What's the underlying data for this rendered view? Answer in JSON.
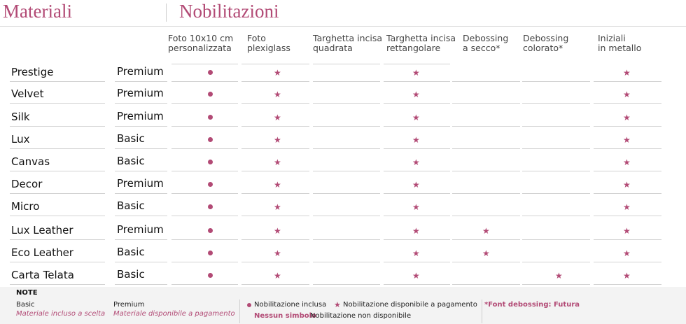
{
  "header": {
    "left_title": "Materiali",
    "right_title": "Nobilitazioni"
  },
  "columns": [
    {
      "line1": "Foto 10x10 cm",
      "line2": "personalizzata"
    },
    {
      "line1": "Foto",
      "line2": "plexiglass"
    },
    {
      "line1": "Targhetta incisa",
      "line2": "quadrata"
    },
    {
      "line1": "Targhetta incisa",
      "line2": "rettangolare"
    },
    {
      "line1": "Debossing",
      "line2": "a secco*"
    },
    {
      "line1": "Debossing",
      "line2": "colorato*"
    },
    {
      "line1": "Iniziali",
      "line2": "in metallo"
    }
  ],
  "rows": [
    {
      "name": "Prestige",
      "type": "Premium",
      "marks": [
        "dot",
        "star",
        "",
        "star",
        "",
        "",
        "star"
      ]
    },
    {
      "name": "Velvet",
      "type": "Premium",
      "marks": [
        "dot",
        "star",
        "",
        "star",
        "",
        "",
        "star"
      ]
    },
    {
      "name": "Silk",
      "type": "Premium",
      "marks": [
        "dot",
        "star",
        "",
        "star",
        "",
        "",
        "star"
      ]
    },
    {
      "name": "Lux",
      "type": "Basic",
      "marks": [
        "dot",
        "star",
        "",
        "star",
        "",
        "",
        "star"
      ]
    },
    {
      "name": "Canvas",
      "type": "Basic",
      "marks": [
        "dot",
        "star",
        "",
        "star",
        "",
        "",
        "star"
      ]
    },
    {
      "name": "Decor",
      "type": "Premium",
      "marks": [
        "dot",
        "star",
        "",
        "star",
        "",
        "",
        "star"
      ]
    },
    {
      "name": "Micro",
      "type": "Basic",
      "marks": [
        "dot",
        "star",
        "",
        "star",
        "",
        "",
        "star"
      ]
    },
    {
      "name": "Lux Leather",
      "type": "Premium",
      "marks": [
        "dot",
        "star",
        "",
        "star",
        "star",
        "",
        "star"
      ]
    },
    {
      "name": "Eco Leather",
      "type": "Basic",
      "marks": [
        "dot",
        "star",
        "",
        "star",
        "star",
        "",
        "star"
      ]
    },
    {
      "name": "Carta Telata",
      "type": "Basic",
      "marks": [
        "dot",
        "star",
        "",
        "star",
        "",
        "star",
        "star"
      ]
    }
  ],
  "notes": {
    "title": "NOTE",
    "basic_label": "Basic",
    "basic_desc": "Materiale incluso a scelta",
    "premium_label": "Premium",
    "premium_desc": "Materiale disponibile a pagamento",
    "legend_included": "Nobilitazione inclusa",
    "legend_paid": "Nobilitazione disponibile a pagamento",
    "legend_none_symbol": "Nessun simbolo",
    "legend_none": "Nobilitazione non disponibile",
    "font_note": "*Font debossing: Futura"
  },
  "colors": {
    "accent": "#b24a75",
    "rule": "#d2d2d2"
  },
  "icons": {
    "included": "dot-icon",
    "paid": "star-icon"
  }
}
